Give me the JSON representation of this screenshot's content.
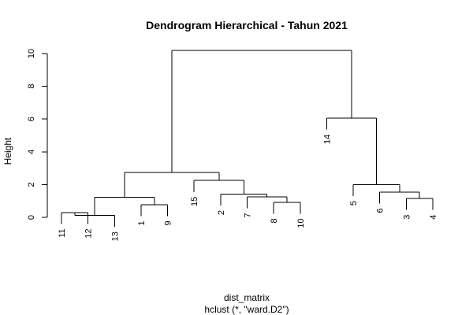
{
  "chart_data": {
    "type": "dendrogram",
    "title": "Dendrogram Hierarchical - Tahun 2021",
    "ylabel": "Height",
    "xlabel": "dist_matrix",
    "sublabel": "hclust (*, \"ward.D2\")",
    "ylim": [
      0,
      10.6
    ],
    "yticks": [
      0,
      2,
      4,
      6,
      8,
      10
    ],
    "leaf_order": [
      "11",
      "12",
      "13",
      "1",
      "9",
      "15",
      "2",
      "7",
      "8",
      "10",
      "14",
      "5",
      "6",
      "3",
      "4"
    ],
    "merges": [
      {
        "children": [
          "leaf:11",
          "leaf:12"
        ],
        "height": 0.3
      },
      {
        "children": [
          "merge:0",
          "leaf:13"
        ],
        "height": 0.12
      },
      {
        "children": [
          "leaf:1",
          "leaf:9"
        ],
        "height": 0.78
      },
      {
        "children": [
          "merge:1",
          "merge:2"
        ],
        "height": 1.22
      },
      {
        "children": [
          "leaf:8",
          "leaf:10"
        ],
        "height": 0.92
      },
      {
        "children": [
          "leaf:7",
          "merge:4"
        ],
        "height": 1.25
      },
      {
        "children": [
          "leaf:2",
          "merge:5"
        ],
        "height": 1.42
      },
      {
        "children": [
          "leaf:15",
          "merge:6"
        ],
        "height": 2.25
      },
      {
        "children": [
          "merge:3",
          "merge:7"
        ],
        "height": 2.75
      },
      {
        "children": [
          "leaf:3",
          "leaf:4"
        ],
        "height": 1.15
      },
      {
        "children": [
          "leaf:6",
          "merge:9"
        ],
        "height": 1.55
      },
      {
        "children": [
          "leaf:5",
          "merge:10"
        ],
        "height": 2.0
      },
      {
        "children": [
          "leaf:14",
          "merge:11"
        ],
        "height": 6.05
      },
      {
        "children": [
          "merge:8",
          "merge:12"
        ],
        "height": 10.2
      }
    ]
  }
}
